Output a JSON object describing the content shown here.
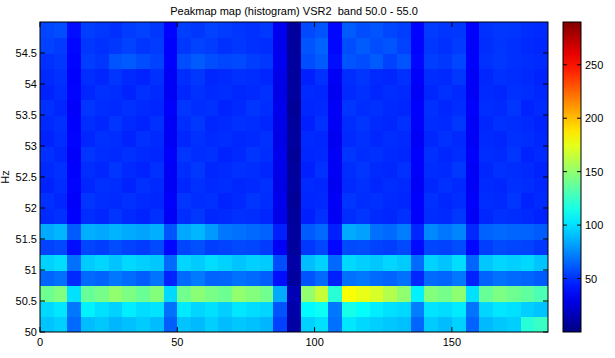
{
  "chart_data": {
    "type": "heatmap",
    "title": "Peakmap map (histogram) VSR2  band 50.0 - 55.0",
    "y_label": "Hz",
    "xlim": [
      0,
      185
    ],
    "xticks": [
      0,
      50,
      100,
      150
    ],
    "ylim": [
      50,
      55
    ],
    "yticks": [
      50,
      50.5,
      51,
      51.5,
      52,
      52.5,
      53,
      53.5,
      54,
      54.5
    ],
    "color_range": [
      0,
      290
    ],
    "colorbar_ticks": [
      50,
      100,
      150,
      200,
      250
    ],
    "cells": [
      [
        92,
        95,
        66,
        90,
        93,
        88,
        91,
        94,
        90,
        63,
        92,
        89,
        95,
        90,
        93,
        91,
        88,
        55,
        10,
        96,
        100,
        68,
        102,
        98,
        95,
        93,
        91,
        65,
        94,
        90,
        96,
        64,
        89,
        93,
        95,
        120,
        125
      ],
      [
        98,
        102,
        70,
        105,
        100,
        96,
        104,
        99,
        101,
        68,
        103,
        97,
        100,
        95,
        102,
        99,
        97,
        60,
        12,
        108,
        112,
        70,
        115,
        110,
        104,
        100,
        98,
        72,
        101,
        99,
        103,
        69,
        97,
        102,
        100,
        95,
        92
      ],
      [
        140,
        145,
        100,
        138,
        142,
        150,
        144,
        139,
        146,
        98,
        141,
        148,
        143,
        140,
        150,
        146,
        141,
        85,
        15,
        150,
        165,
        120,
        180,
        175,
        170,
        160,
        150,
        105,
        146,
        142,
        149,
        100,
        138,
        144,
        140,
        136,
        130
      ],
      [
        65,
        68,
        48,
        66,
        64,
        70,
        67,
        63,
        69,
        46,
        66,
        71,
        64,
        65,
        68,
        66,
        63,
        40,
        9,
        60,
        66,
        45,
        68,
        70,
        66,
        64,
        68,
        47,
        66,
        65,
        70,
        46,
        64,
        68,
        66,
        65,
        62
      ],
      [
        96,
        99,
        68,
        94,
        97,
        92,
        98,
        95,
        93,
        66,
        97,
        94,
        99,
        96,
        92,
        95,
        94,
        58,
        11,
        90,
        96,
        66,
        98,
        95,
        93,
        97,
        94,
        67,
        96,
        92,
        99,
        65,
        93,
        97,
        95,
        98,
        92
      ],
      [
        55,
        57,
        40,
        56,
        54,
        58,
        55,
        53,
        57,
        38,
        56,
        59,
        54,
        55,
        57,
        56,
        53,
        34,
        8,
        52,
        56,
        38,
        57,
        58,
        55,
        54,
        57,
        39,
        56,
        55,
        58,
        38,
        54,
        57,
        56,
        55,
        52
      ],
      [
        85,
        88,
        62,
        86,
        84,
        87,
        85,
        83,
        86,
        60,
        84,
        88,
        80,
        70,
        68,
        66,
        64,
        45,
        9,
        62,
        66,
        45,
        85,
        82,
        68,
        66,
        72,
        47,
        75,
        70,
        74,
        48,
        64,
        66,
        65,
        64,
        62
      ],
      [
        48,
        50,
        36,
        49,
        47,
        51,
        48,
        46,
        50,
        34,
        49,
        52,
        47,
        48,
        50,
        49,
        47,
        30,
        8,
        45,
        50,
        33,
        49,
        51,
        48,
        47,
        50,
        35,
        49,
        48,
        52,
        34,
        47,
        50,
        49,
        48,
        46
      ],
      [
        50,
        47,
        35,
        51,
        49,
        48,
        50,
        48,
        47,
        35,
        51,
        49,
        50,
        46,
        48,
        51,
        49,
        31,
        7,
        47,
        48,
        34,
        51,
        49,
        50,
        48,
        47,
        36,
        50,
        47,
        49,
        35,
        49,
        48,
        51,
        46,
        48
      ],
      [
        46,
        49,
        37,
        47,
        50,
        49,
        46,
        50,
        48,
        33,
        47,
        50,
        48,
        49,
        47,
        48,
        50,
        29,
        8,
        48,
        47,
        32,
        48,
        50,
        47,
        49,
        48,
        34,
        47,
        50,
        48,
        33,
        48,
        47,
        50,
        49,
        47
      ],
      [
        48,
        50,
        36,
        49,
        47,
        51,
        48,
        46,
        50,
        34,
        49,
        52,
        47,
        48,
        50,
        49,
        47,
        30,
        8,
        45,
        50,
        33,
        49,
        51,
        48,
        47,
        50,
        35,
        49,
        48,
        52,
        34,
        47,
        50,
        49,
        48,
        46
      ],
      [
        50,
        47,
        35,
        51,
        49,
        48,
        50,
        48,
        47,
        35,
        51,
        49,
        50,
        46,
        48,
        51,
        49,
        31,
        7,
        47,
        48,
        34,
        51,
        49,
        50,
        48,
        47,
        36,
        50,
        47,
        49,
        35,
        49,
        48,
        51,
        46,
        48
      ],
      [
        46,
        49,
        37,
        47,
        50,
        49,
        46,
        50,
        48,
        33,
        47,
        50,
        48,
        49,
        47,
        48,
        50,
        29,
        8,
        48,
        47,
        32,
        48,
        50,
        47,
        49,
        48,
        34,
        47,
        50,
        48,
        33,
        48,
        47,
        50,
        49,
        47
      ],
      [
        48,
        50,
        36,
        49,
        47,
        51,
        48,
        46,
        50,
        34,
        49,
        52,
        47,
        48,
        50,
        49,
        47,
        30,
        8,
        45,
        50,
        33,
        49,
        51,
        48,
        47,
        50,
        35,
        49,
        48,
        52,
        34,
        47,
        50,
        49,
        48,
        46
      ],
      [
        50,
        47,
        35,
        51,
        49,
        48,
        50,
        48,
        47,
        35,
        51,
        49,
        50,
        46,
        48,
        51,
        49,
        31,
        7,
        47,
        48,
        34,
        51,
        49,
        50,
        48,
        47,
        36,
        50,
        47,
        49,
        35,
        49,
        48,
        51,
        46,
        48
      ],
      [
        46,
        49,
        37,
        47,
        50,
        49,
        46,
        50,
        48,
        33,
        47,
        50,
        48,
        49,
        47,
        48,
        50,
        29,
        8,
        48,
        47,
        32,
        48,
        50,
        47,
        49,
        48,
        34,
        47,
        50,
        48,
        33,
        48,
        47,
        50,
        49,
        47
      ],
      [
        48,
        50,
        36,
        49,
        47,
        51,
        48,
        46,
        50,
        34,
        49,
        52,
        47,
        48,
        50,
        49,
        47,
        30,
        8,
        45,
        50,
        33,
        49,
        51,
        48,
        47,
        50,
        35,
        49,
        48,
        52,
        34,
        47,
        50,
        49,
        48,
        46
      ],
      [
        50,
        52,
        37,
        54,
        51,
        60,
        62,
        58,
        55,
        36,
        58,
        62,
        58,
        56,
        57,
        54,
        52,
        32,
        9,
        58,
        62,
        40,
        60,
        58,
        62,
        55,
        60,
        38,
        54,
        52,
        56,
        36,
        50,
        52,
        50,
        49,
        48
      ],
      [
        55,
        53,
        38,
        52,
        50,
        52,
        55,
        51,
        53,
        36,
        52,
        55,
        53,
        50,
        52,
        50,
        49,
        31,
        8,
        60,
        64,
        38,
        58,
        62,
        58,
        60,
        55,
        37,
        52,
        50,
        53,
        35,
        49,
        51,
        50,
        48,
        47
      ],
      [
        56,
        58,
        40,
        54,
        52,
        50,
        53,
        55,
        52,
        37,
        54,
        52,
        55,
        53,
        51,
        50,
        52,
        32,
        8,
        57,
        60,
        38,
        62,
        58,
        60,
        56,
        54,
        37,
        53,
        51,
        52,
        36,
        50,
        52,
        51,
        49,
        48
      ]
    ]
  }
}
